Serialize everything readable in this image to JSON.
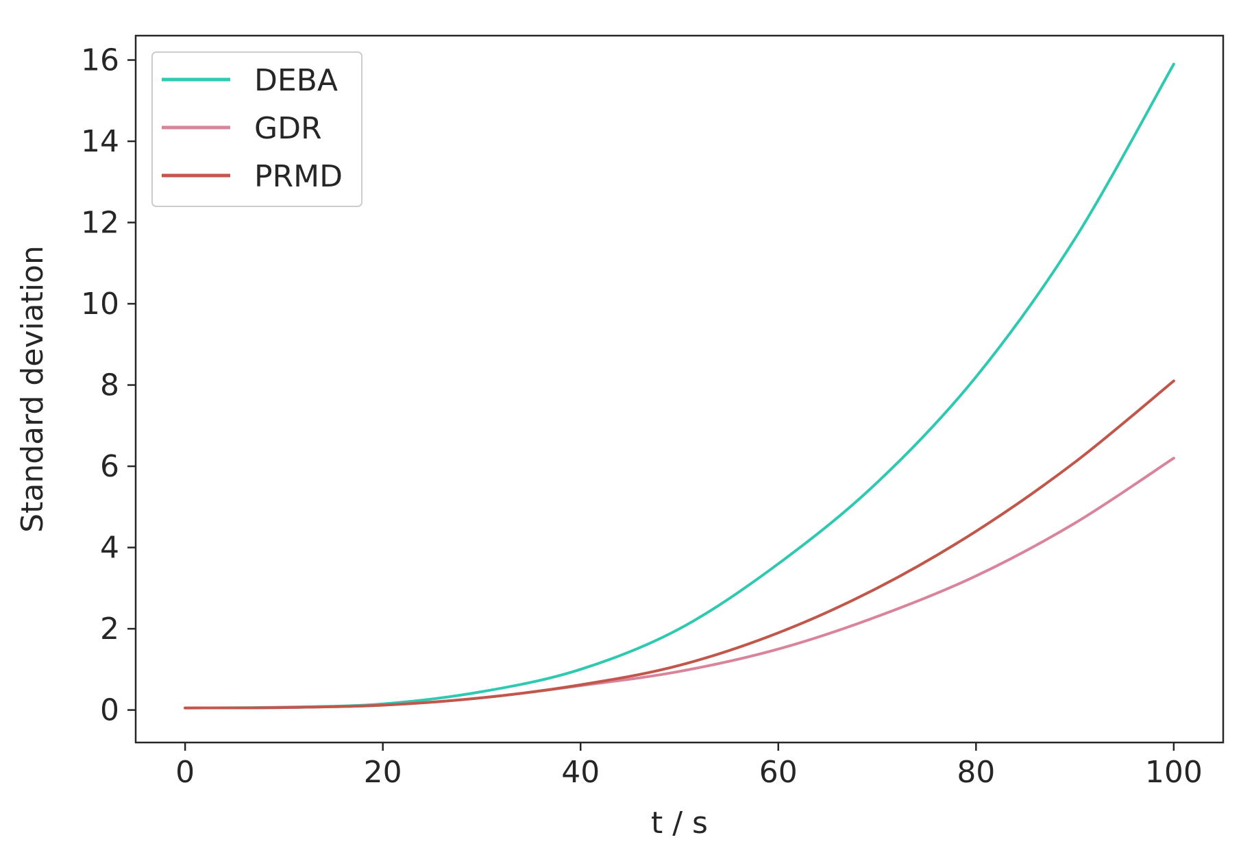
{
  "chart_data": {
    "type": "line",
    "xlabel": "t / s",
    "ylabel": "Standard deviation",
    "xlim": [
      -5,
      105
    ],
    "ylim": [
      -0.8,
      16.6
    ],
    "xticks": [
      0,
      20,
      40,
      60,
      80,
      100
    ],
    "yticks": [
      0,
      2,
      4,
      6,
      8,
      10,
      12,
      14,
      16
    ],
    "grid": false,
    "legend": {
      "position": "top-left"
    },
    "x": [
      0,
      10,
      20,
      30,
      40,
      50,
      60,
      70,
      80,
      90,
      100
    ],
    "series": [
      {
        "name": "DEBA",
        "color": "#2ec9b0",
        "values": [
          0.05,
          0.07,
          0.15,
          0.45,
          1.0,
          2.0,
          3.6,
          5.6,
          8.2,
          11.6,
          15.9
        ]
      },
      {
        "name": "GDR",
        "color": "#d9849b",
        "values": [
          0.05,
          0.06,
          0.12,
          0.3,
          0.6,
          0.95,
          1.5,
          2.3,
          3.3,
          4.6,
          6.2
        ]
      },
      {
        "name": "PRMD",
        "color": "#c0574a",
        "values": [
          0.05,
          0.06,
          0.12,
          0.3,
          0.62,
          1.1,
          1.9,
          3.0,
          4.4,
          6.1,
          8.1
        ]
      }
    ]
  }
}
